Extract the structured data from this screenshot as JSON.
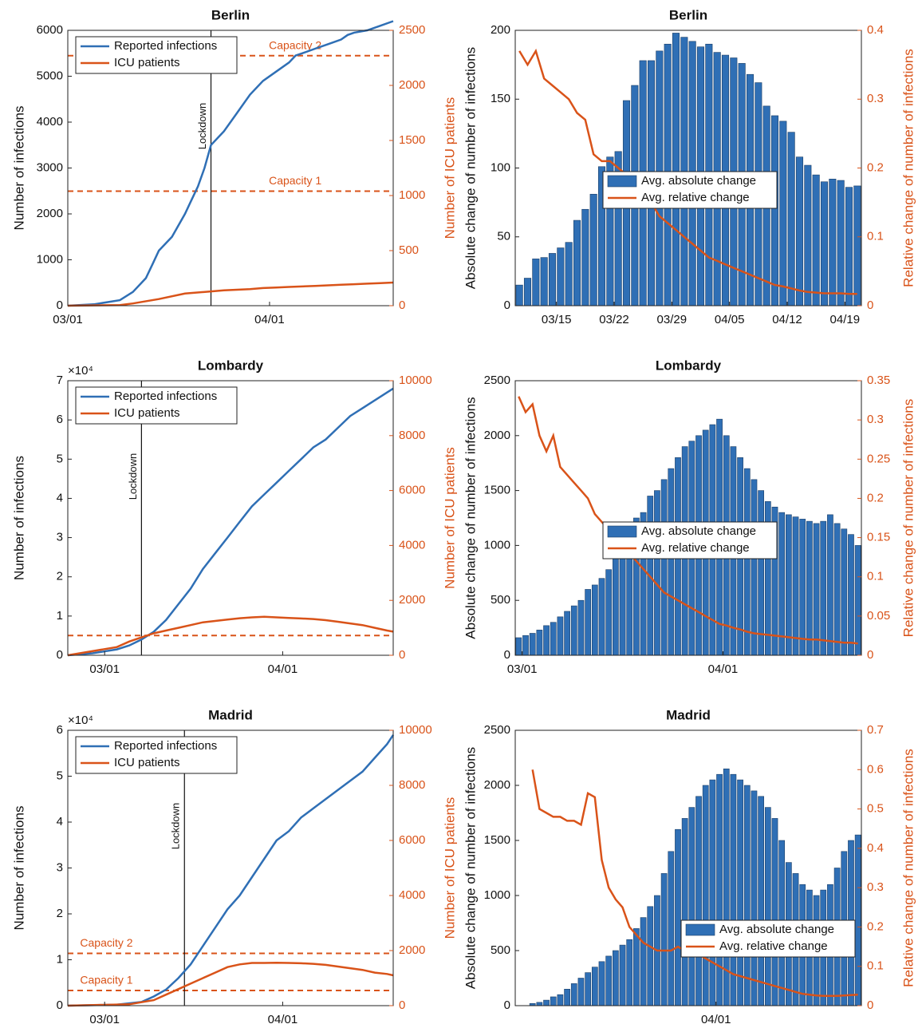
{
  "colors": {
    "blue": "#2f6fb5",
    "orange": "#d95319",
    "bar": "#2f6fb5",
    "axis": "#222222"
  },
  "chart_data": [
    {
      "type": "line",
      "title": "Berlin",
      "ylabel": "Number of infections",
      "ylabel_right": "Number of ICU patients",
      "ylim": [
        0,
        6000
      ],
      "yticks": [
        0,
        1000,
        2000,
        3000,
        4000,
        5000,
        6000
      ],
      "ytick_labels": [
        "0",
        "1000",
        "2000",
        "3000",
        "4000",
        "5000",
        "6000"
      ],
      "ylim_right": [
        0,
        2500
      ],
      "yticks_right": [
        0,
        500,
        1000,
        1500,
        2000,
        2500
      ],
      "ytick_labels_right": [
        "0",
        "500",
        "1000",
        "1500",
        "2000",
        "2500"
      ],
      "exponent_label": "",
      "xlim": [
        0,
        50
      ],
      "xticks": [
        0,
        31
      ],
      "xtick_labels": [
        "03/01",
        "04/01"
      ],
      "lockdown": {
        "x": 22,
        "label": "Lockdown"
      },
      "capacities": [
        {
          "label": "Capacity 2",
          "value": 2270,
          "label_x": 39,
          "align": "end"
        },
        {
          "label": "Capacity 1",
          "value": 1040,
          "label_x": 39,
          "align": "end"
        }
      ],
      "legend": {
        "entries": [
          "Reported infections",
          "ICU patients"
        ],
        "location": "top-left"
      },
      "series": [
        {
          "name": "Reported infections",
          "axis": "left",
          "x": [
            0,
            4,
            8,
            10,
            12,
            13,
            14,
            16,
            18,
            19,
            20,
            21,
            22,
            24,
            26,
            28,
            30,
            32,
            34,
            35,
            36,
            38,
            40,
            42,
            43,
            44,
            46,
            48,
            50
          ],
          "y": [
            0,
            30,
            120,
            300,
            600,
            900,
            1200,
            1500,
            2000,
            2300,
            2600,
            3000,
            3500,
            3800,
            4200,
            4600,
            4900,
            5100,
            5300,
            5450,
            5500,
            5600,
            5700,
            5800,
            5900,
            5950,
            6000,
            6100,
            6200
          ]
        },
        {
          "name": "ICU patients",
          "axis": "right",
          "x": [
            0,
            8,
            10,
            14,
            18,
            22,
            24,
            26,
            28,
            30,
            32,
            34,
            36,
            38,
            40,
            42,
            44,
            46,
            48,
            50
          ],
          "y": [
            0,
            5,
            20,
            60,
            110,
            130,
            140,
            145,
            150,
            160,
            165,
            170,
            175,
            180,
            185,
            190,
            195,
            200,
            205,
            210
          ]
        }
      ]
    },
    {
      "type": "bar",
      "title": "Berlin",
      "ylabel": "Absolute change of number of infections",
      "ylabel_right": "Relative change of number of infections",
      "ylim": [
        0,
        200
      ],
      "yticks": [
        0,
        50,
        100,
        150,
        200
      ],
      "ytick_labels": [
        "0",
        "50",
        "100",
        "150",
        "200"
      ],
      "ylim_right": [
        0,
        0.4
      ],
      "yticks_right": [
        0,
        0.1,
        0.2,
        0.3,
        0.4
      ],
      "ytick_labels_right": [
        "0",
        "0.1",
        "0.2",
        "0.3",
        "0.4"
      ],
      "xlim": [
        0,
        42
      ],
      "xticks": [
        5,
        12,
        19,
        26,
        33,
        40
      ],
      "xtick_labels": [
        "03/15",
        "03/22",
        "03/29",
        "04/05",
        "04/12",
        "04/19"
      ],
      "legend": {
        "entries": [
          "Avg. absolute change",
          "Avg. relative change"
        ],
        "location": "center"
      },
      "bars": {
        "name": "Avg. absolute change",
        "x_start": 0.5,
        "values": [
          15,
          20,
          34,
          35,
          38,
          42,
          46,
          62,
          70,
          81,
          101,
          108,
          112,
          149,
          160,
          178,
          178,
          185,
          190,
          198,
          195,
          192,
          188,
          190,
          184,
          182,
          180,
          176,
          168,
          162,
          145,
          138,
          134,
          126,
          108,
          102,
          95,
          90,
          92,
          91,
          86,
          87
        ]
      },
      "line": {
        "name": "Avg. relative change",
        "x_start": 0.5,
        "values": [
          0.37,
          0.35,
          0.37,
          0.33,
          0.32,
          0.31,
          0.3,
          0.28,
          0.27,
          0.22,
          0.21,
          0.21,
          0.2,
          0.19,
          0.18,
          0.16,
          0.15,
          0.13,
          0.12,
          0.11,
          0.1,
          0.09,
          0.08,
          0.07,
          0.065,
          0.06,
          0.055,
          0.05,
          0.045,
          0.04,
          0.035,
          0.03,
          0.028,
          0.025,
          0.022,
          0.02,
          0.019,
          0.018,
          0.018,
          0.018,
          0.017,
          0.017
        ]
      }
    },
    {
      "type": "line",
      "title": "Lombardy",
      "ylabel": "Number of infections",
      "ylabel_right": "Number of ICU patients",
      "ylim": [
        0,
        70000
      ],
      "yticks": [
        0,
        10000,
        20000,
        30000,
        40000,
        50000,
        60000,
        70000
      ],
      "ytick_labels": [
        "0",
        "1",
        "2",
        "3",
        "4",
        "5",
        "6",
        "7"
      ],
      "ylim_right": [
        0,
        10000
      ],
      "yticks_right": [
        0,
        2000,
        4000,
        6000,
        8000,
        10000
      ],
      "ytick_labels_right": [
        "0",
        "2000",
        "4000",
        "6000",
        "8000",
        "10000"
      ],
      "exponent_label": "×10⁴",
      "xlim": [
        0,
        53
      ],
      "xticks": [
        6,
        35
      ],
      "xtick_labels": [
        "03/01",
        "04/01"
      ],
      "lockdown": {
        "x": 12,
        "label": "Lockdown"
      },
      "capacities": [
        {
          "label": "",
          "value": 720,
          "label_x": 0,
          "align": "start"
        }
      ],
      "legend": {
        "entries": [
          "Reported infections",
          "ICU patients"
        ],
        "location": "top-left"
      },
      "series": [
        {
          "name": "Reported infections",
          "axis": "left",
          "x": [
            0,
            4,
            8,
            10,
            12,
            14,
            16,
            18,
            20,
            22,
            24,
            26,
            28,
            30,
            32,
            34,
            36,
            38,
            40,
            42,
            44,
            46,
            48,
            50,
            52,
            53
          ],
          "y": [
            0,
            500,
            1500,
            2500,
            4000,
            6000,
            9000,
            13000,
            17000,
            22000,
            26000,
            30000,
            34000,
            38000,
            41000,
            44000,
            47000,
            50000,
            53000,
            55000,
            58000,
            61000,
            63000,
            65000,
            67000,
            68000
          ]
        },
        {
          "name": "ICU patients",
          "axis": "right",
          "x": [
            0,
            8,
            10,
            12,
            14,
            16,
            18,
            20,
            22,
            24,
            26,
            28,
            30,
            32,
            34,
            36,
            38,
            40,
            42,
            44,
            46,
            48,
            50,
            52,
            53
          ],
          "y": [
            0,
            300,
            500,
            650,
            800,
            900,
            1000,
            1100,
            1200,
            1250,
            1300,
            1350,
            1380,
            1400,
            1380,
            1360,
            1340,
            1320,
            1280,
            1220,
            1160,
            1100,
            1000,
            900,
            860
          ]
        }
      ]
    },
    {
      "type": "bar",
      "title": "Lombardy",
      "ylabel": "Absolute change of number of infections",
      "ylabel_right": "Relative change of number of infections",
      "ylim": [
        0,
        2500
      ],
      "yticks": [
        0,
        500,
        1000,
        1500,
        2000,
        2500
      ],
      "ytick_labels": [
        "0",
        "500",
        "1000",
        "1500",
        "2000",
        "2500"
      ],
      "ylim_right": [
        0,
        0.35
      ],
      "yticks_right": [
        0,
        0.05,
        0.1,
        0.15,
        0.2,
        0.25,
        0.3,
        0.35
      ],
      "ytick_labels_right": [
        "0",
        "0.05",
        "0.1",
        "0.15",
        "0.2",
        "0.25",
        "0.3",
        "0.35"
      ],
      "xlim": [
        0,
        50
      ],
      "xticks": [
        1,
        30
      ],
      "xtick_labels": [
        "03/01",
        "04/01"
      ],
      "legend": {
        "entries": [
          "Avg. absolute change",
          "Avg. relative change"
        ],
        "location": "center"
      },
      "bars": {
        "name": "Avg. absolute change",
        "x_start": 0.5,
        "values": [
          160,
          180,
          200,
          230,
          270,
          300,
          350,
          400,
          450,
          500,
          600,
          640,
          700,
          780,
          900,
          1000,
          1200,
          1250,
          1300,
          1450,
          1500,
          1600,
          1700,
          1800,
          1900,
          1950,
          2000,
          2050,
          2100,
          2150,
          2000,
          1900,
          1800,
          1700,
          1600,
          1500,
          1400,
          1350,
          1300,
          1280,
          1260,
          1240,
          1220,
          1200,
          1220,
          1280,
          1200,
          1150,
          1100,
          1000
        ]
      },
      "line": {
        "name": "Avg. relative change",
        "x_start": 0.5,
        "values": [
          0.33,
          0.31,
          0.32,
          0.28,
          0.26,
          0.28,
          0.24,
          0.23,
          0.22,
          0.21,
          0.2,
          0.18,
          0.17,
          0.16,
          0.15,
          0.14,
          0.13,
          0.12,
          0.11,
          0.1,
          0.09,
          0.08,
          0.075,
          0.07,
          0.065,
          0.06,
          0.055,
          0.05,
          0.045,
          0.04,
          0.038,
          0.035,
          0.033,
          0.03,
          0.028,
          0.027,
          0.026,
          0.025,
          0.024,
          0.023,
          0.022,
          0.021,
          0.02,
          0.02,
          0.019,
          0.018,
          0.017,
          0.016,
          0.016,
          0.015
        ]
      }
    },
    {
      "type": "line",
      "title": "Madrid",
      "ylabel": "Number of infections",
      "ylabel_right": "Number of ICU patients",
      "ylim": [
        0,
        60000
      ],
      "yticks": [
        0,
        10000,
        20000,
        30000,
        40000,
        50000,
        60000
      ],
      "ytick_labels": [
        "0",
        "1",
        "2",
        "3",
        "4",
        "5",
        "6"
      ],
      "ylim_right": [
        0,
        10000
      ],
      "yticks_right": [
        0,
        2000,
        4000,
        6000,
        8000,
        10000
      ],
      "ytick_labels_right": [
        "0",
        "2000",
        "4000",
        "6000",
        "8000",
        "10000"
      ],
      "exponent_label": "×10⁴",
      "xlim": [
        0,
        53
      ],
      "xticks": [
        6,
        35
      ],
      "xtick_labels": [
        "03/01",
        "04/01"
      ],
      "lockdown": {
        "x": 19,
        "label": "Lockdown"
      },
      "capacities": [
        {
          "label": "Capacity 2",
          "value": 1900,
          "label_x": 2,
          "align": "start"
        },
        {
          "label": "Capacity 1",
          "value": 550,
          "label_x": 2,
          "align": "start"
        }
      ],
      "legend": {
        "entries": [
          "Reported infections",
          "ICU patients"
        ],
        "location": "top-left"
      },
      "series": [
        {
          "name": "Reported infections",
          "axis": "left",
          "x": [
            0,
            8,
            12,
            14,
            16,
            18,
            20,
            22,
            24,
            26,
            28,
            30,
            32,
            34,
            36,
            38,
            40,
            42,
            44,
            46,
            48,
            50,
            52,
            53
          ],
          "y": [
            0,
            200,
            800,
            2000,
            3500,
            6000,
            9000,
            13000,
            17000,
            21000,
            24000,
            28000,
            32000,
            36000,
            38000,
            41000,
            43000,
            45000,
            47000,
            49000,
            51000,
            54000,
            57000,
            59000
          ]
        },
        {
          "name": "ICU patients",
          "axis": "right",
          "x": [
            0,
            10,
            14,
            16,
            18,
            20,
            22,
            24,
            26,
            28,
            30,
            32,
            34,
            36,
            38,
            40,
            42,
            44,
            46,
            48,
            50,
            52,
            53
          ],
          "y": [
            0,
            50,
            200,
            400,
            600,
            800,
            1000,
            1200,
            1400,
            1500,
            1550,
            1550,
            1560,
            1550,
            1540,
            1520,
            1480,
            1420,
            1360,
            1300,
            1200,
            1150,
            1100
          ]
        }
      ]
    },
    {
      "type": "bar",
      "title": "Madrid",
      "ylabel": "Absolute change of number of infections",
      "ylabel_right": "Relative change of number of infections",
      "ylim": [
        0,
        2500
      ],
      "yticks": [
        0,
        500,
        1000,
        1500,
        2000,
        2500
      ],
      "ytick_labels": [
        "0",
        "500",
        "1000",
        "1500",
        "2000",
        "2500"
      ],
      "ylim_right": [
        0,
        0.7
      ],
      "yticks_right": [
        0,
        0.1,
        0.2,
        0.3,
        0.4,
        0.5,
        0.6,
        0.7
      ],
      "ytick_labels_right": [
        "0",
        "0.1",
        "0.2",
        "0.3",
        "0.4",
        "0.5",
        "0.6",
        "0.7"
      ],
      "xlim": [
        0,
        50
      ],
      "xticks": [
        29
      ],
      "xtick_labels": [
        "04/01"
      ],
      "legend": {
        "entries": [
          "Avg. absolute change",
          "Avg. relative change"
        ],
        "location": "center-right"
      },
      "bars": {
        "name": "Avg. absolute change",
        "x_start": 2.5,
        "values": [
          20,
          30,
          50,
          80,
          100,
          150,
          200,
          250,
          300,
          350,
          400,
          450,
          500,
          550,
          600,
          700,
          800,
          900,
          1000,
          1200,
          1400,
          1600,
          1700,
          1800,
          1900,
          2000,
          2050,
          2100,
          2150,
          2100,
          2050,
          2000,
          1950,
          1900,
          1800,
          1700,
          1500,
          1300,
          1200,
          1100,
          1050,
          1000,
          1050,
          1100,
          1250,
          1400,
          1500,
          1550
        ]
      },
      "line": {
        "name": "Avg. relative change",
        "x_start": 2.5,
        "values": [
          0.6,
          0.5,
          0.49,
          0.48,
          0.48,
          0.47,
          0.47,
          0.46,
          0.54,
          0.53,
          0.37,
          0.3,
          0.27,
          0.25,
          0.2,
          0.18,
          0.16,
          0.15,
          0.14,
          0.14,
          0.14,
          0.15,
          0.14,
          0.14,
          0.13,
          0.12,
          0.11,
          0.1,
          0.09,
          0.08,
          0.075,
          0.07,
          0.065,
          0.06,
          0.055,
          0.05,
          0.045,
          0.04,
          0.035,
          0.03,
          0.028,
          0.026,
          0.025,
          0.025,
          0.025,
          0.026,
          0.027,
          0.028
        ]
      }
    }
  ]
}
